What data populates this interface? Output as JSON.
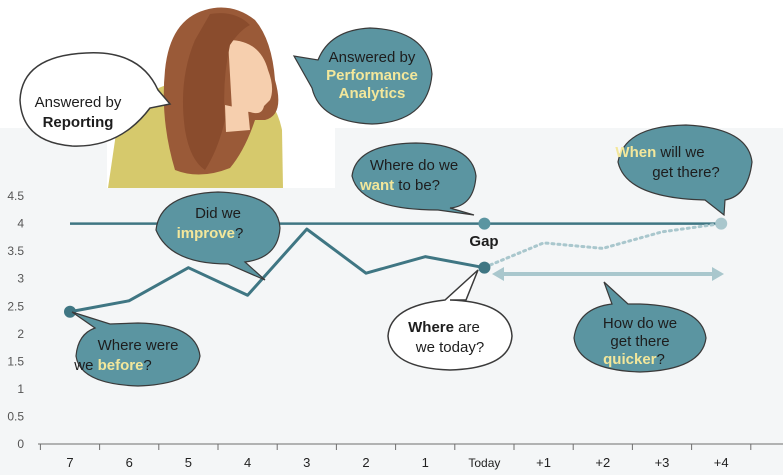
{
  "chart_data": {
    "type": "line",
    "categories": [
      "7",
      "6",
      "5",
      "4",
      "3",
      "2",
      "1",
      "Today",
      "+1",
      "+2",
      "+3",
      "+4"
    ],
    "y_ticks": [
      "0",
      "0.5",
      "1",
      "1.5",
      "2",
      "2.5",
      "3",
      "3.5",
      "4",
      "4.5"
    ],
    "ylim": [
      0,
      4.5
    ],
    "series": [
      {
        "values": [
          2.4,
          2.6,
          3.2,
          2.7,
          3.9,
          3.1,
          3.4,
          3.2,
          null,
          null,
          null,
          null
        ]
      },
      {
        "values": [
          null,
          null,
          null,
          null,
          null,
          null,
          null,
          3.25,
          3.65,
          3.55,
          3.85,
          4.0
        ],
        "style": "dotted"
      },
      {
        "values": [
          4,
          4,
          4,
          4,
          4,
          4,
          4,
          4,
          4,
          4,
          4,
          4
        ]
      }
    ],
    "annotations": {
      "gap_label": "Gap"
    }
  },
  "bubbles": {
    "reporting": [
      "Answered by",
      "Reporting"
    ],
    "performance": [
      "Answered by",
      "Performance",
      "Analytics"
    ],
    "improve": [
      "Did we",
      "improve",
      "?"
    ],
    "want": [
      "Where do we",
      "want",
      " to be?"
    ],
    "when": [
      "When",
      " will we",
      "get there?"
    ],
    "before": [
      "Where were",
      "we ",
      "before",
      "?"
    ],
    "today": [
      "Where",
      " are",
      "we today?"
    ],
    "quicker": [
      "How do we",
      "get there",
      "quicker",
      "?"
    ]
  },
  "colors": {
    "teal": "#3f7683",
    "bubble_teal": "#5b95a1",
    "bubble_dark": "#4f8793",
    "light_teal": "#a9c7cd",
    "highlight": "#f3e79b",
    "hair": "#9a5a38",
    "skin": "#f6cfae",
    "shirt": "#d6c96c"
  },
  "illustration": {
    "name": "woman-thinking-illustration"
  }
}
